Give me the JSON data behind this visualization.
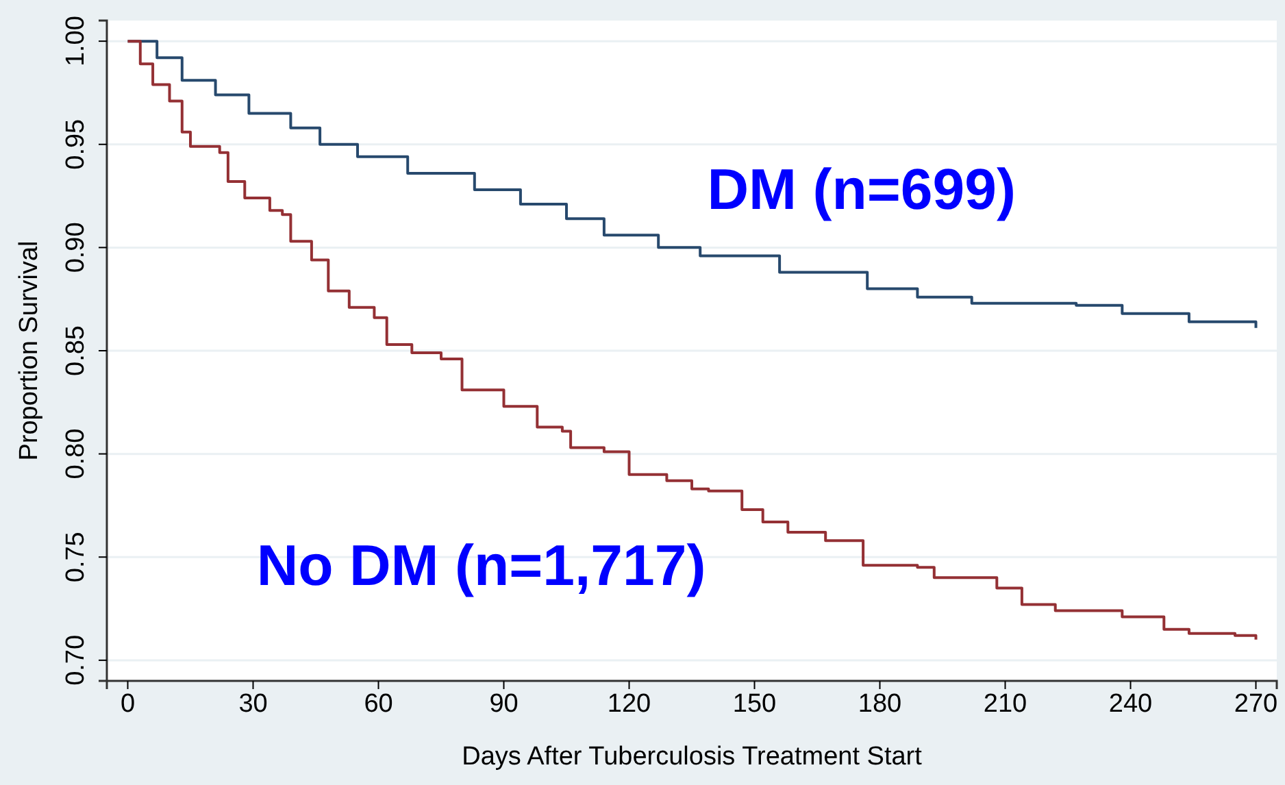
{
  "chart_data": {
    "type": "step",
    "xlabel": "Days After Tuberculosis Treatment Start",
    "ylabel": "Proportion Survival",
    "xlim": [
      -5,
      275
    ],
    "ylim": [
      0.69,
      1.01
    ],
    "xticks": [
      0,
      30,
      60,
      90,
      120,
      150,
      180,
      210,
      240,
      270
    ],
    "yticks": [
      {
        "value": 0.7,
        "label": "0.70"
      },
      {
        "value": 0.75,
        "label": "0.75"
      },
      {
        "value": 0.8,
        "label": "0.80"
      },
      {
        "value": 0.85,
        "label": "0.85"
      },
      {
        "value": 0.9,
        "label": "0.90"
      },
      {
        "value": 0.95,
        "label": "0.95"
      },
      {
        "value": 1,
        "label": "1.00"
      }
    ],
    "grid": "y",
    "marker": "none",
    "line_style": "solid",
    "series": [
      {
        "name": "DM (n=699)",
        "color": "#27496d",
        "x": [
          0,
          7,
          13,
          21,
          29,
          39,
          46,
          55,
          67,
          83,
          94,
          105,
          114,
          127,
          137,
          156,
          177,
          189,
          202,
          227,
          238,
          254,
          270
        ],
        "values": [
          1.0,
          0.992,
          0.981,
          0.974,
          0.965,
          0.958,
          0.95,
          0.944,
          0.936,
          0.928,
          0.921,
          0.914,
          0.906,
          0.9,
          0.896,
          0.888,
          0.88,
          0.876,
          0.873,
          0.872,
          0.868,
          0.864,
          0.861
        ]
      },
      {
        "name": "No DM (n=1,717)",
        "color": "#943034",
        "x": [
          0,
          3,
          6,
          10,
          13,
          15,
          22,
          24,
          28,
          34,
          37,
          39,
          44,
          48,
          53,
          59,
          62,
          68,
          75,
          80,
          90,
          98,
          104,
          106,
          114,
          120,
          129,
          135,
          139,
          147,
          152,
          158,
          167,
          176,
          189,
          193,
          208,
          214,
          222,
          238,
          248,
          254,
          265,
          270
        ],
        "values": [
          1.0,
          0.989,
          0.979,
          0.971,
          0.956,
          0.949,
          0.946,
          0.932,
          0.924,
          0.918,
          0.916,
          0.903,
          0.894,
          0.879,
          0.871,
          0.866,
          0.853,
          0.849,
          0.846,
          0.831,
          0.823,
          0.813,
          0.811,
          0.803,
          0.801,
          0.79,
          0.787,
          0.783,
          0.782,
          0.773,
          0.767,
          0.762,
          0.758,
          0.746,
          0.745,
          0.74,
          0.735,
          0.727,
          0.724,
          0.721,
          0.715,
          0.713,
          0.712,
          0.71
        ]
      }
    ]
  }
}
